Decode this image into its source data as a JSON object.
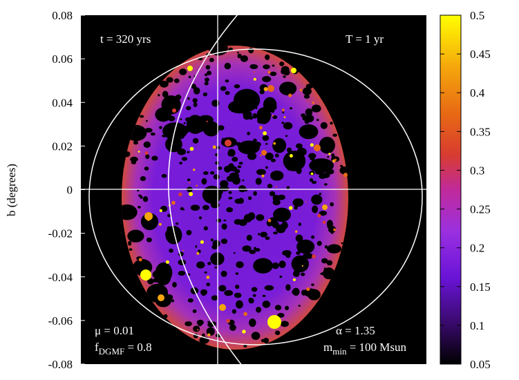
{
  "chart_data": {
    "type": "heatmap",
    "ylabel": "b (degrees)",
    "xlabel": "",
    "ylim": [
      -0.08,
      0.08
    ],
    "y_ticks": [
      "0.08",
      "0.06",
      "0.04",
      "0.02",
      "0",
      "-0.02",
      "-0.04",
      "-0.06",
      "-0.08"
    ],
    "colorbar": {
      "range": [
        0.05,
        0.5
      ],
      "ticks": [
        "0.5",
        "0.45",
        "0.4",
        "0.35",
        "0.3",
        "0.25",
        "0.2",
        "0.15",
        "0.1",
        "0.05"
      ],
      "colormap": [
        "#000000",
        "#3a0a6e",
        "#6a14d8",
        "#9a30e0",
        "#c02a9a",
        "#d83c30",
        "#e86a14",
        "#f5a60c",
        "#ffff00"
      ]
    },
    "annotations": {
      "top_left": "t = 320 yrs",
      "top_right": "T = 1 yr",
      "mu": "μ = 0.01",
      "f_main": "f",
      "f_sub": "DGMF",
      "f_value": " = 0.8",
      "alpha": "α = 1.35",
      "m_main": "m",
      "m_sub": "min",
      "m_value": " = 100 Msun"
    },
    "ellipse_base_value": 0.15,
    "rim_value": 0.28,
    "hot_spot_values": [
      0.5,
      0.48,
      0.45,
      0.42,
      0.4,
      0.38,
      0.35
    ]
  }
}
